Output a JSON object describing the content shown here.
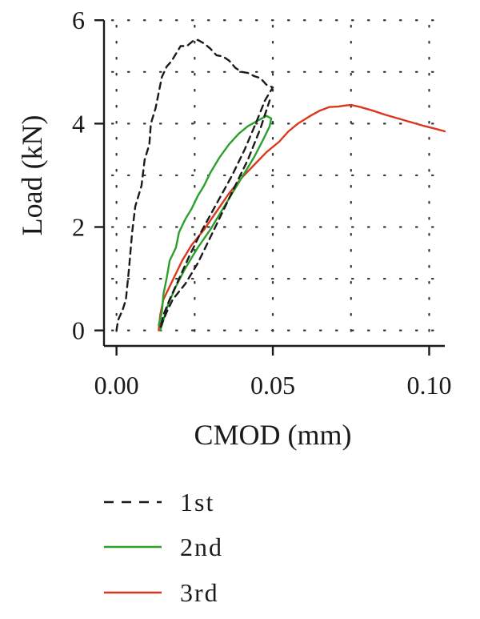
{
  "chart_data": {
    "type": "line",
    "xlabel": "CMOD (mm)",
    "ylabel": "Load (kN)",
    "xlim": [
      -0.004,
      0.105
    ],
    "ylim": [
      -0.3,
      6.05
    ],
    "xticks": [
      0.0,
      0.05,
      0.1
    ],
    "xtick_labels": [
      "0.00",
      "0.05",
      "0.10"
    ],
    "yticks": [
      0,
      2,
      4,
      6
    ],
    "ytick_labels": [
      "0",
      "2",
      "4",
      "6"
    ],
    "grid": true,
    "grid_style": "dotted",
    "legend_position": "bottom",
    "series": [
      {
        "name": "1st",
        "color": "#1a1a1a",
        "dash": "dashed",
        "points": [
          [
            0.0,
            0.0
          ],
          [
            0.0005,
            0.2
          ],
          [
            0.002,
            0.4
          ],
          [
            0.003,
            0.6
          ],
          [
            0.004,
            1.2
          ],
          [
            0.005,
            1.9
          ],
          [
            0.006,
            2.4
          ],
          [
            0.008,
            2.8
          ],
          [
            0.009,
            3.3
          ],
          [
            0.0105,
            3.6
          ],
          [
            0.011,
            4.0
          ],
          [
            0.0125,
            4.3
          ],
          [
            0.0135,
            4.6
          ],
          [
            0.0145,
            4.9
          ],
          [
            0.016,
            5.1
          ],
          [
            0.0175,
            5.2
          ],
          [
            0.0205,
            5.5
          ],
          [
            0.0225,
            5.5
          ],
          [
            0.0245,
            5.6
          ],
          [
            0.026,
            5.62
          ],
          [
            0.028,
            5.55
          ],
          [
            0.03,
            5.45
          ],
          [
            0.032,
            5.32
          ],
          [
            0.034,
            5.3
          ],
          [
            0.036,
            5.22
          ],
          [
            0.038,
            5.08
          ],
          [
            0.04,
            5.0
          ],
          [
            0.042,
            4.98
          ],
          [
            0.044,
            4.92
          ],
          [
            0.046,
            4.88
          ],
          [
            0.048,
            4.75
          ],
          [
            0.05,
            4.7
          ],
          [
            0.0475,
            4.45
          ],
          [
            0.0445,
            4.0
          ],
          [
            0.041,
            3.5
          ],
          [
            0.037,
            3.0
          ],
          [
            0.032,
            2.45
          ],
          [
            0.027,
            1.9
          ],
          [
            0.023,
            1.4
          ],
          [
            0.02,
            1.0
          ],
          [
            0.017,
            0.6
          ],
          [
            0.015,
            0.3
          ],
          [
            0.014,
            0.05
          ],
          [
            0.016,
            0.35
          ],
          [
            0.018,
            0.6
          ],
          [
            0.022,
            0.9
          ],
          [
            0.026,
            1.3
          ],
          [
            0.03,
            1.8
          ],
          [
            0.034,
            2.3
          ],
          [
            0.038,
            2.8
          ],
          [
            0.042,
            3.3
          ],
          [
            0.046,
            3.9
          ],
          [
            0.049,
            4.45
          ]
        ]
      },
      {
        "name": "2nd",
        "color": "#2ca02c",
        "dash": "solid",
        "points": [
          [
            0.0135,
            0.1
          ],
          [
            0.0145,
            0.35
          ],
          [
            0.015,
            0.7
          ],
          [
            0.016,
            1.0
          ],
          [
            0.017,
            1.35
          ],
          [
            0.019,
            1.6
          ],
          [
            0.02,
            1.9
          ],
          [
            0.022,
            2.15
          ],
          [
            0.024,
            2.35
          ],
          [
            0.026,
            2.6
          ],
          [
            0.028,
            2.8
          ],
          [
            0.03,
            3.05
          ],
          [
            0.033,
            3.35
          ],
          [
            0.036,
            3.6
          ],
          [
            0.039,
            3.8
          ],
          [
            0.042,
            3.95
          ],
          [
            0.045,
            4.05
          ],
          [
            0.048,
            4.15
          ],
          [
            0.0495,
            4.1
          ],
          [
            0.049,
            3.95
          ],
          [
            0.047,
            3.7
          ],
          [
            0.044,
            3.35
          ],
          [
            0.041,
            3.05
          ],
          [
            0.037,
            2.65
          ],
          [
            0.034,
            2.35
          ],
          [
            0.03,
            1.95
          ],
          [
            0.026,
            1.6
          ],
          [
            0.022,
            1.2
          ],
          [
            0.019,
            0.85
          ],
          [
            0.0165,
            0.5
          ],
          [
            0.015,
            0.2
          ],
          [
            0.014,
            0.0
          ]
        ]
      },
      {
        "name": "3rd",
        "color": "#d9381e",
        "dash": "solid",
        "points": [
          [
            0.0135,
            0.0
          ],
          [
            0.014,
            0.3
          ],
          [
            0.015,
            0.6
          ],
          [
            0.017,
            0.85
          ],
          [
            0.019,
            1.1
          ],
          [
            0.021,
            1.35
          ],
          [
            0.024,
            1.65
          ],
          [
            0.028,
            1.95
          ],
          [
            0.032,
            2.3
          ],
          [
            0.036,
            2.65
          ],
          [
            0.04,
            2.95
          ],
          [
            0.044,
            3.2
          ],
          [
            0.048,
            3.45
          ],
          [
            0.052,
            3.65
          ],
          [
            0.055,
            3.85
          ],
          [
            0.058,
            4.0
          ],
          [
            0.062,
            4.15
          ],
          [
            0.065,
            4.25
          ],
          [
            0.068,
            4.32
          ],
          [
            0.071,
            4.33
          ],
          [
            0.073,
            4.35
          ],
          [
            0.075,
            4.36
          ],
          [
            0.078,
            4.32
          ],
          [
            0.082,
            4.25
          ],
          [
            0.086,
            4.17
          ],
          [
            0.09,
            4.1
          ],
          [
            0.094,
            4.03
          ],
          [
            0.098,
            3.96
          ],
          [
            0.102,
            3.9
          ],
          [
            0.105,
            3.85
          ]
        ]
      }
    ]
  }
}
